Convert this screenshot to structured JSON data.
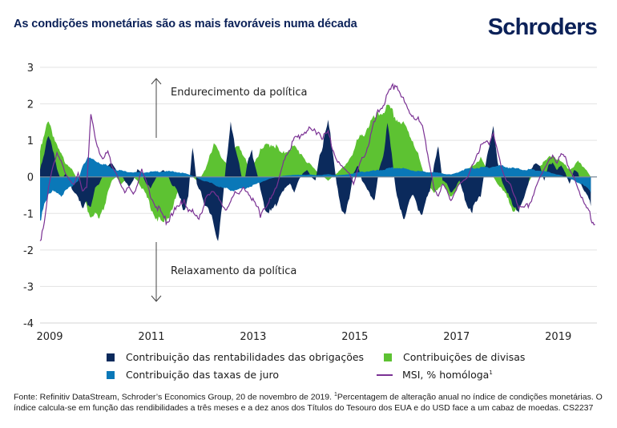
{
  "header": {
    "title": "As condições monetárias são as mais favoráveis numa década",
    "brand": "Schroders"
  },
  "colors": {
    "bond_yields": "#0b2a5c",
    "currency": "#5dc232",
    "interest_rates": "#0a78b8",
    "msi": "#7b3294",
    "grid": "#e3e3e3",
    "title": "#0b2158"
  },
  "chart_data": {
    "type": "area",
    "title": "As condições monetárias são as mais favoráveis numa década",
    "xlabel": "",
    "ylabel": "",
    "ylim": [
      -4,
      3
    ],
    "yticks": [
      3,
      2,
      1,
      0,
      -1,
      -2,
      -3,
      -4
    ],
    "xlim": [
      2009.0,
      2019.95
    ],
    "xticks": [
      2009,
      2011,
      2013,
      2015,
      2017,
      2019
    ],
    "grid": true,
    "legend_position": "bottom",
    "annotations": [
      {
        "text": "Endurecimento da política",
        "direction": "up"
      },
      {
        "text": "Relaxamento da política",
        "direction": "down"
      }
    ],
    "x_start": 2009.0,
    "x_step": 0.0833,
    "series": [
      {
        "name": "Contribuição das rentabilidades das obrigações",
        "key": "bond_yields",
        "kind": "area",
        "values": [
          0.2,
          0.6,
          1.2,
          0.8,
          0.2,
          -0.1,
          0.1,
          -0.2,
          -0.4,
          -0.5,
          -0.9,
          -0.7,
          -0.8,
          -0.3,
          -0.2,
          0.1,
          0.3,
          0.4,
          0.2,
          0.1,
          -0.1,
          -0.3,
          -0.1,
          0.2,
          0.1,
          -0.2,
          -0.3,
          -0.1,
          0.1,
          0.2,
          0.1,
          -0.2,
          -0.3,
          -0.6,
          -0.9,
          -0.5,
          0.9,
          -0.2,
          -0.4,
          -0.8,
          -1.0,
          -1.3,
          -1.7,
          -0.8,
          0.5,
          1.4,
          0.8,
          0.4,
          -0.3,
          0.4,
          0.7,
          0.2,
          -0.3,
          -0.8,
          -1.0,
          -0.9,
          -0.7,
          -0.4,
          -0.3,
          -0.2,
          -0.4,
          -0.1,
          0.1,
          0.2,
          0.0,
          -0.1,
          0.6,
          1.0,
          1.5,
          0.8,
          -0.2,
          -0.8,
          -1.0,
          -0.6,
          0.1,
          0.3,
          -0.1,
          -0.3,
          -0.5,
          -0.6,
          0.2,
          0.6,
          1.4,
          0.6,
          -0.4,
          -0.9,
          -1.1,
          -0.7,
          -0.5,
          -0.8,
          -1.0,
          -0.7,
          -0.4,
          0.3,
          0.8,
          -0.1,
          -0.2,
          -0.4,
          -0.3,
          -0.1,
          -0.5,
          -0.8,
          -0.9,
          -0.7,
          -0.5,
          0.2,
          0.9,
          1.4,
          0.4,
          -0.1,
          -0.4,
          -0.6,
          -0.8,
          -0.9,
          -0.7,
          -0.3,
          0.2,
          0.4,
          0.3,
          -0.1,
          0.3,
          0.4,
          0.2,
          0.3,
          0.1,
          -0.2,
          0.2,
          0.1,
          -0.3,
          -0.5,
          -0.8
        ]
      },
      {
        "name": "Contribuições de divisas",
        "key": "currency",
        "kind": "area",
        "values": [
          0.7,
          1.1,
          1.6,
          1.2,
          0.8,
          0.6,
          0.4,
          0.3,
          0.1,
          -0.1,
          -0.6,
          -0.8,
          -1.1,
          -1.0,
          -1.2,
          -0.9,
          -0.4,
          -0.1,
          0.0,
          -0.2,
          -0.1,
          0.1,
          0.0,
          -0.1,
          -0.3,
          -0.5,
          -0.8,
          -1.0,
          -1.2,
          -1.3,
          -1.1,
          -0.9,
          -0.6,
          -0.3,
          -0.1,
          0.0,
          0.0,
          -0.1,
          0.0,
          0.2,
          0.6,
          0.9,
          0.7,
          0.5,
          0.4,
          0.6,
          0.8,
          0.9,
          0.6,
          0.3,
          0.3,
          0.5,
          0.7,
          0.8,
          0.9,
          0.9,
          0.8,
          0.6,
          0.7,
          0.8,
          0.8,
          0.7,
          0.6,
          0.4,
          0.3,
          0.2,
          0.1,
          0.0,
          -0.1,
          0.0,
          0.1,
          0.2,
          0.3,
          0.5,
          0.7,
          1.0,
          1.1,
          1.3,
          1.5,
          1.6,
          1.7,
          1.8,
          1.9,
          1.8,
          1.6,
          1.5,
          1.4,
          1.2,
          1.0,
          0.7,
          0.3,
          -0.1,
          -0.3,
          -0.4,
          -0.3,
          -0.2,
          -0.4,
          -0.5,
          -0.4,
          -0.2,
          0.0,
          0.2,
          0.3,
          0.4,
          0.5,
          0.3,
          0.2,
          0.0,
          -0.2,
          -0.3,
          -0.5,
          -0.8,
          -0.9,
          -0.8,
          -0.5,
          -0.2,
          0.0,
          0.1,
          0.3,
          0.4,
          0.5,
          0.6,
          0.5,
          0.4,
          0.3,
          0.2,
          0.3,
          0.4,
          0.3,
          0.2,
          0.0
        ]
      },
      {
        "name": "Contribuição das taxas de juro",
        "key": "interest_rates",
        "kind": "area",
        "values": [
          -1.2,
          -0.7,
          -0.5,
          -0.4,
          -0.4,
          -0.5,
          -0.4,
          -0.3,
          -0.2,
          -0.1,
          0.3,
          0.5,
          0.5,
          0.45,
          0.4,
          0.35,
          0.3,
          0.25,
          0.2,
          0.18,
          0.15,
          0.14,
          0.13,
          0.12,
          0.12,
          0.13,
          0.14,
          0.14,
          0.15,
          0.15,
          0.15,
          0.15,
          0.14,
          0.12,
          0.1,
          0.07,
          0.03,
          -0.02,
          -0.08,
          -0.12,
          -0.16,
          -0.2,
          -0.25,
          -0.3,
          -0.33,
          -0.35,
          -0.36,
          -0.35,
          -0.32,
          -0.28,
          -0.25,
          -0.2,
          -0.15,
          -0.1,
          -0.06,
          -0.03,
          0.0,
          0.02,
          0.04,
          0.05,
          0.05,
          0.06,
          0.06,
          0.06,
          0.06,
          0.05,
          0.05,
          0.06,
          0.07,
          0.06,
          0.05,
          0.05,
          0.06,
          0.08,
          0.1,
          0.12,
          0.14,
          0.15,
          0.16,
          0.17,
          0.18,
          0.2,
          0.22,
          0.24,
          0.25,
          0.24,
          0.22,
          0.2,
          0.18,
          0.16,
          0.15,
          0.14,
          0.13,
          0.12,
          0.11,
          0.1,
          0.08,
          0.06,
          0.1,
          0.15,
          0.2,
          0.22,
          0.24,
          0.25,
          0.25,
          0.26,
          0.27,
          0.28,
          0.3,
          0.3,
          0.28,
          0.25,
          0.23,
          0.22,
          0.2,
          0.2,
          0.2,
          0.18,
          0.17,
          0.15,
          0.13,
          0.1,
          0.07,
          0.04,
          0.0,
          -0.05,
          -0.1,
          -0.15,
          -0.2,
          -0.3,
          -0.45
        ]
      },
      {
        "name": "MSI, % homóloga¹",
        "key": "msi",
        "kind": "line",
        "values": [
          -1.75,
          -1.2,
          -0.3,
          0.3,
          0.6,
          0.4,
          0.1,
          -0.1,
          -0.2,
          0.1,
          -0.4,
          -0.3,
          1.7,
          1.1,
          0.7,
          0.5,
          0.7,
          0.3,
          0.1,
          -0.2,
          -0.4,
          -0.3,
          -0.5,
          -0.2,
          0.2,
          -0.1,
          -0.5,
          -0.7,
          -0.9,
          -1.1,
          -1.2,
          -1.0,
          -0.9,
          -0.8,
          -0.6,
          -0.9,
          -1.0,
          -1.1,
          -1.0,
          -0.6,
          -0.5,
          -0.4,
          -0.5,
          -0.8,
          -1.0,
          -0.6,
          -0.4,
          -0.5,
          -0.3,
          -0.4,
          -0.6,
          -0.8,
          -1.0,
          -0.8,
          -0.7,
          -0.5,
          -0.2,
          0.2,
          0.6,
          0.8,
          1.0,
          1.1,
          1.2,
          1.3,
          1.2,
          1.3,
          1.2,
          1.1,
          1.2,
          0.8,
          0.5,
          0.3,
          0.2,
          0.1,
          -0.2,
          0.2,
          0.5,
          0.7,
          1.1,
          1.5,
          1.8,
          2.0,
          2.2,
          2.4,
          2.55,
          2.3,
          2.0,
          1.8,
          1.7,
          1.6,
          1.4,
          1.0,
          0.3,
          -0.3,
          -0.5,
          -0.2,
          -0.4,
          -0.6,
          -0.4,
          -0.2,
          -0.1,
          0.0,
          0.3,
          0.6,
          0.8,
          0.9,
          1.0,
          1.2,
          0.7,
          0.2,
          -0.1,
          -0.2,
          -0.5,
          -0.8,
          -0.9,
          -0.8,
          -0.6,
          -0.3,
          0.0,
          0.2,
          0.4,
          0.6,
          0.4,
          0.6,
          0.5,
          0.2,
          0.0,
          -0.3,
          -0.6,
          -0.9,
          -1.1,
          -1.3
        ]
      }
    ]
  },
  "annotations": {
    "up": "Endurecimento da política",
    "down": "Relaxamento da política"
  },
  "legend": {
    "bond_yields": "Contribuição das rentabilidades das obrigações",
    "currency": "Contribuições de divisas",
    "interest_rates": "Contribuição das taxas de juro",
    "msi": "MSI, % homóloga",
    "msi_sup": "1"
  },
  "footnote": {
    "part1": "Fonte: Refinitiv DataStream, Schroder’s Economics Group, 20 de novembro de 2019. ",
    "sup": "1",
    "part2": "Percentagem de alteração anual no índice de condições monetárias. O índice calcula-se em função das rendibilidades a três meses e a dez anos dos Títulos do Tesouro dos EUA e do USD face a um cabaz de moedas. CS2237"
  }
}
